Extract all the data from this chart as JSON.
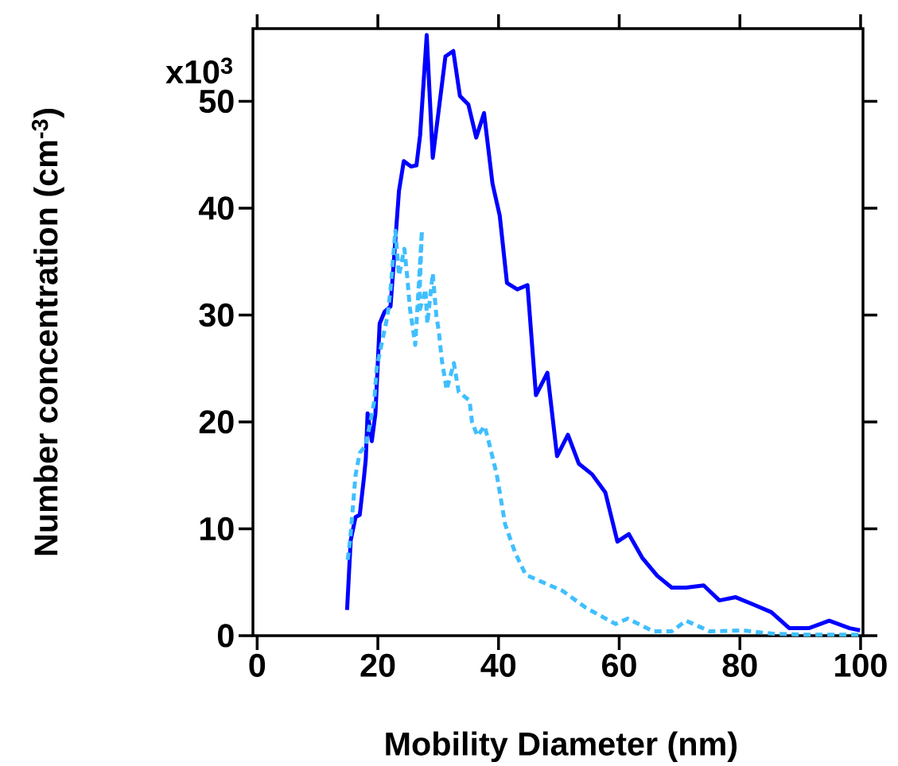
{
  "chart_data": {
    "type": "line",
    "xlabel": "Mobility Diameter (nm)",
    "ylabel": "Number concentration (cm$^{-3}$)",
    "annotations": [
      "x10$^{3}$"
    ],
    "xlim": [
      -0.7,
      100.4
    ],
    "ylim": [
      0,
      56.8
    ],
    "xticks": [
      0,
      20,
      40,
      60,
      80,
      100
    ],
    "yticks": [
      0,
      10,
      20,
      30,
      40,
      50
    ],
    "series": [
      {
        "color": "#0000ff",
        "line_style": "solid",
        "x": [
          14.9,
          15.5,
          16.3,
          17.0,
          17.7,
          18.0,
          18.3,
          19.0,
          19.6,
          20.3,
          21.1,
          22.1,
          23.5,
          24.3,
          25.5,
          26.4,
          27.0,
          28.1,
          29.1,
          31.2,
          32.5,
          33.6,
          35.0,
          36.3,
          37.6,
          39.0,
          40.2,
          41.4,
          43.1,
          44.8,
          46.2,
          48.1,
          49.7,
          51.5,
          53.3,
          55.5,
          57.7,
          59.7,
          61.6,
          63.8,
          66.3,
          68.7,
          71.1,
          74.0,
          76.6,
          79.3,
          82.3,
          85.2,
          88.2,
          91.4,
          94.8,
          98.2,
          99.9
        ],
        "values": [
          2.4,
          8.9,
          11.1,
          11.3,
          14.8,
          16.5,
          20.8,
          18.2,
          20.8,
          29.2,
          30.3,
          30.8,
          41.6,
          44.4,
          43.9,
          44.0,
          46.8,
          56.2,
          44.7,
          54.2,
          54.7,
          50.5,
          49.7,
          46.6,
          48.9,
          42.3,
          39.3,
          33.0,
          32.4,
          32.8,
          22.5,
          24.6,
          16.8,
          18.8,
          16.1,
          15.1,
          13.4,
          8.8,
          9.5,
          7.3,
          5.6,
          4.5,
          4.5,
          4.7,
          3.3,
          3.6,
          2.9,
          2.2,
          0.7,
          0.7,
          1.4,
          0.7,
          0.5
        ]
      },
      {
        "color": "#40bfff",
        "line_style": "dotted",
        "x": [
          15.0,
          15.4,
          16.3,
          17.0,
          18.0,
          19.4,
          19.8,
          20.4,
          21.6,
          22.1,
          22.9,
          23.5,
          24.4,
          24.9,
          25.3,
          26.2,
          27.3,
          26.8,
          27.9,
          28.2,
          29.1,
          29.7,
          30.1,
          30.6,
          31.4,
          32.6,
          33.4,
          35.2,
          35.6,
          36.5,
          37.7,
          38.4,
          39.7,
          41.1,
          42.8,
          44.5,
          47.7,
          50.6,
          54.5,
          59.4,
          61.4,
          65.7,
          68.7,
          71.1,
          75.0,
          80.4,
          85.2,
          90.1,
          99.9
        ],
        "values": [
          7.1,
          8.9,
          15.0,
          17.1,
          17.8,
          21.9,
          25.0,
          26.7,
          29.9,
          32.4,
          37.9,
          33.7,
          36.2,
          33.4,
          30.7,
          27.2,
          37.9,
          30.2,
          32.4,
          29.2,
          33.9,
          29.9,
          28.5,
          25.8,
          23.0,
          25.5,
          22.8,
          22.0,
          20.0,
          18.7,
          19.6,
          18.1,
          15.1,
          10.4,
          7.7,
          5.7,
          4.9,
          4.2,
          2.6,
          1.1,
          1.6,
          0.4,
          0.4,
          1.4,
          0.4,
          0.5,
          0.2,
          0.1,
          0.1
        ]
      }
    ]
  }
}
